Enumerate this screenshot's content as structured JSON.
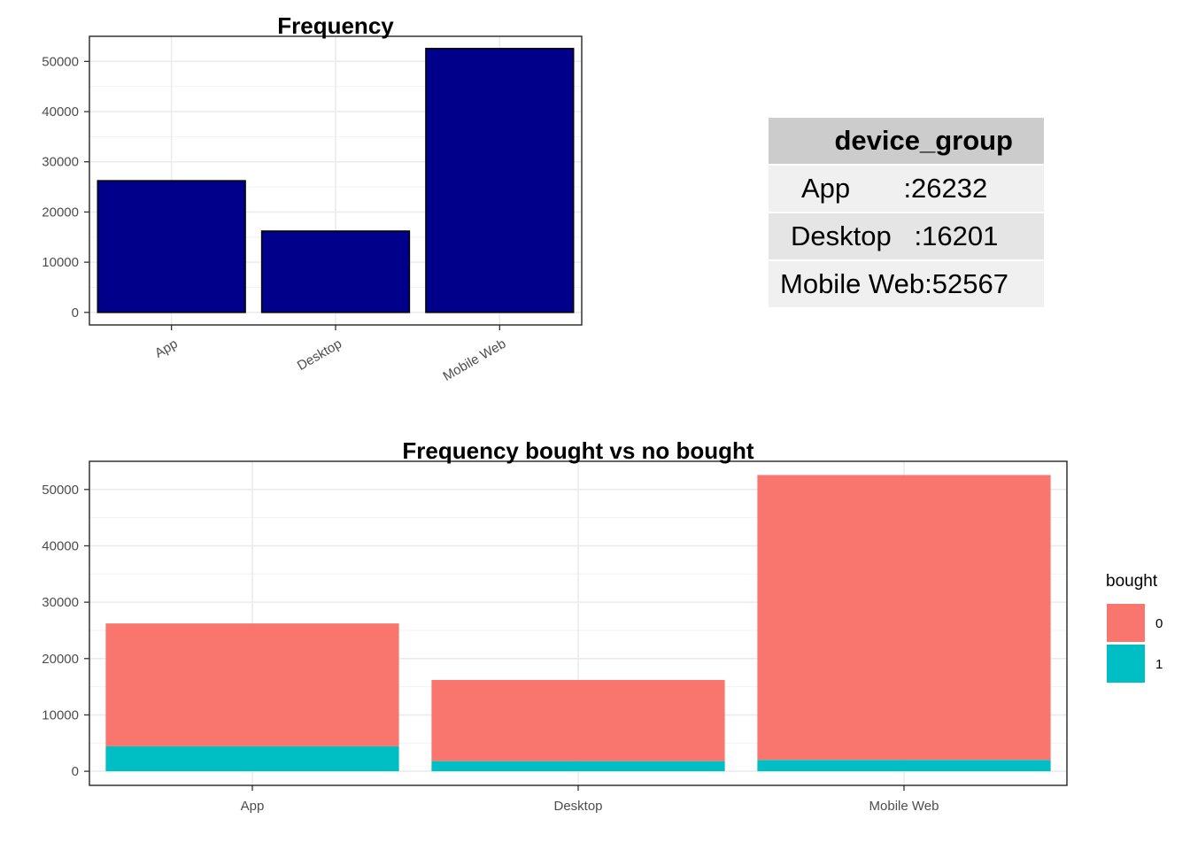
{
  "chart_data": [
    {
      "type": "bar",
      "title": "Frequency",
      "categories": [
        "App",
        "Desktop",
        "Mobile Web"
      ],
      "values": [
        26232,
        16201,
        52567
      ],
      "ylim": [
        -2500,
        55000
      ],
      "yticks": [
        0,
        10000,
        20000,
        30000,
        40000,
        50000
      ],
      "ytick_labels": [
        "0",
        "10000",
        "20000",
        "30000",
        "40000",
        "50000"
      ],
      "xlabel": "",
      "ylabel": "",
      "bar_color": "#00008B",
      "grid": true
    },
    {
      "type": "bar",
      "stacked": true,
      "title": "Frequency bought vs no bought",
      "categories": [
        "App",
        "Desktop",
        "Mobile Web"
      ],
      "series": [
        {
          "name": "0",
          "color": "#F8766D",
          "values": [
            21800,
            14400,
            50550
          ]
        },
        {
          "name": "1",
          "color": "#00BFC4",
          "values": [
            4432,
            1801,
            2017
          ]
        }
      ],
      "ylim": [
        -2500,
        55000
      ],
      "yticks": [
        0,
        10000,
        20000,
        30000,
        40000,
        50000
      ],
      "ytick_labels": [
        "0",
        "10000",
        "20000",
        "30000",
        "40000",
        "50000"
      ],
      "xlabel": "",
      "ylabel": "",
      "legend_title": "bought",
      "legend_position": "right",
      "grid": true
    }
  ],
  "summary_table": {
    "header": "device_group",
    "rows": [
      "App       :26232",
      "Desktop   :16201",
      "Mobile Web:52567"
    ]
  }
}
